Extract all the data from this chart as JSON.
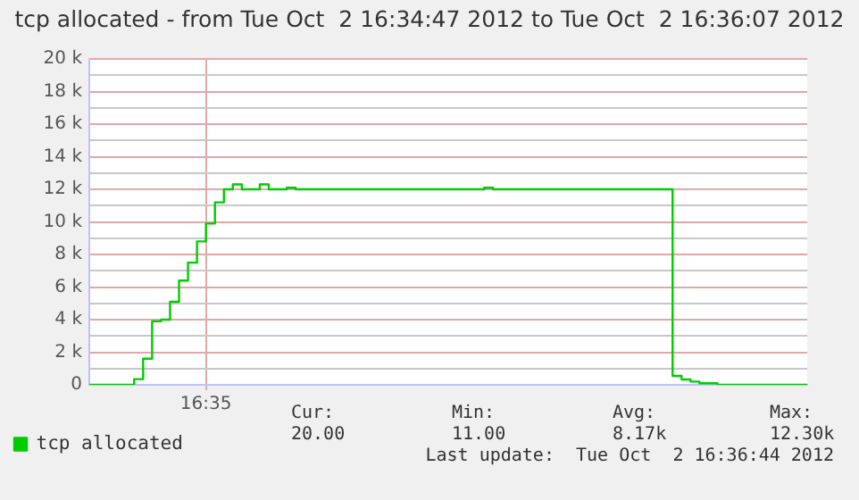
{
  "chart_data": {
    "type": "step",
    "title": "tcp allocated - from Tue Oct  2 16:34:47 2012 to Tue Oct  2 16:36:07 2012",
    "categories": [
      null,
      null,
      null,
      null,
      null,
      null,
      null,
      null,
      null,
      null,
      null,
      null,
      null,
      "16:35",
      null,
      null,
      null,
      null,
      null,
      null,
      null,
      null,
      null,
      null,
      null,
      null,
      null,
      null,
      null,
      null,
      null,
      null,
      null,
      null,
      null,
      null,
      null,
      null,
      null,
      null,
      null,
      null,
      null,
      null,
      null,
      null,
      null,
      null,
      null,
      null,
      null,
      null,
      null,
      null,
      null,
      null,
      null,
      null,
      null,
      null,
      null,
      null,
      null,
      null,
      null,
      null,
      null,
      null,
      null,
      null,
      null,
      null,
      null,
      null,
      null,
      null,
      null,
      null,
      null,
      null,
      null
    ],
    "series": [
      {
        "name": "tcp allocated",
        "color": "#00cc00",
        "values": [
          0,
          0,
          0,
          0,
          0,
          350,
          1600,
          3900,
          4000,
          5100,
          6400,
          7500,
          8800,
          9900,
          11200,
          12000,
          12300,
          12000,
          12000,
          12300,
          12000,
          12000,
          12100,
          12000,
          12000,
          12000,
          12000,
          12000,
          12000,
          12000,
          12000,
          12000,
          12000,
          12000,
          12000,
          12000,
          12000,
          12000,
          12000,
          12000,
          12000,
          12000,
          12000,
          12000,
          12100,
          12000,
          12000,
          12000,
          12000,
          12000,
          12000,
          12000,
          12000,
          12000,
          12000,
          12000,
          12000,
          12000,
          12000,
          12000,
          12000,
          12000,
          12000,
          12000,
          12000,
          550,
          330,
          200,
          100,
          100,
          0,
          0,
          0,
          0,
          0,
          0,
          0,
          0,
          0,
          0,
          0
        ]
      }
    ],
    "ylim": [
      0,
      20000
    ],
    "yticks": [
      {
        "value": 0,
        "label": "0"
      },
      {
        "value": 1000,
        "label": null
      },
      {
        "value": 2000,
        "label": "2 k"
      },
      {
        "value": 3000,
        "label": null
      },
      {
        "value": 4000,
        "label": "4 k"
      },
      {
        "value": 5000,
        "label": null
      },
      {
        "value": 6000,
        "label": "6 k"
      },
      {
        "value": 7000,
        "label": null
      },
      {
        "value": 8000,
        "label": "8 k"
      },
      {
        "value": 9000,
        "label": null
      },
      {
        "value": 10000,
        "label": "10 k"
      },
      {
        "value": 11000,
        "label": null
      },
      {
        "value": 12000,
        "label": "12 k"
      },
      {
        "value": 13000,
        "label": null
      },
      {
        "value": 14000,
        "label": "14 k"
      },
      {
        "value": 15000,
        "label": null
      },
      {
        "value": 16000,
        "label": "16 k"
      },
      {
        "value": 17000,
        "label": null
      },
      {
        "value": 18000,
        "label": "18 k"
      },
      {
        "value": 19000,
        "label": null
      },
      {
        "value": 20000,
        "label": "20 k"
      }
    ],
    "grid": true,
    "legend": "bottom left",
    "line_style": "solid",
    "annotations": [
      "Cur:",
      "20.00",
      "Min:",
      "11.00",
      "Avg:",
      "8.17k",
      "Max:",
      "12.30k",
      "Last update:  Tue Oct  2 16:36:44 2012"
    ]
  }
}
